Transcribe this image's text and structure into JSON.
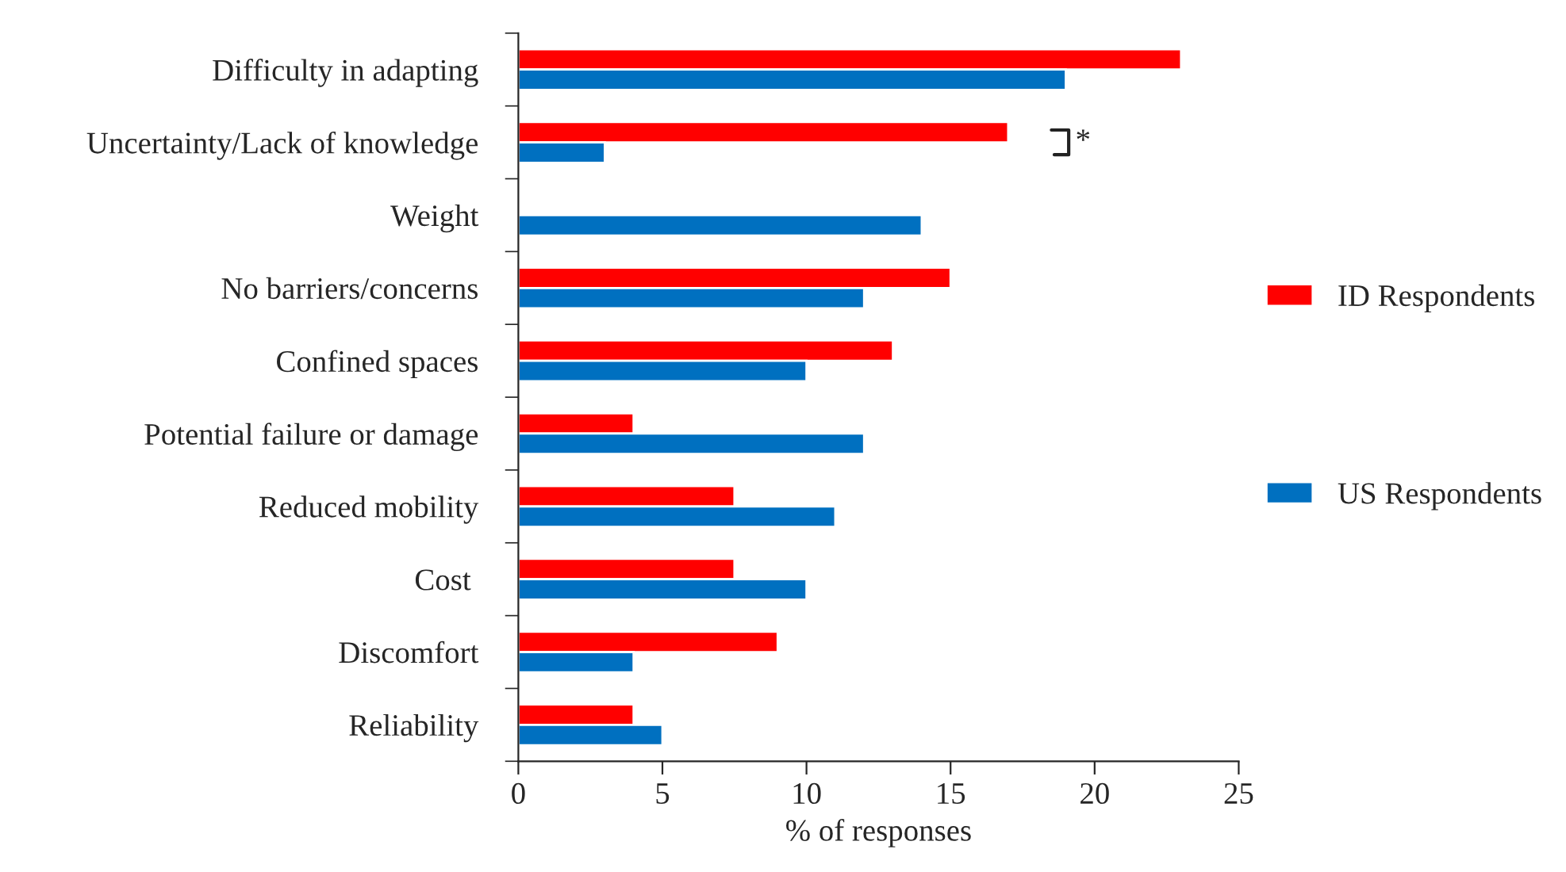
{
  "chart_data": {
    "type": "bar",
    "orientation": "horizontal",
    "xlabel": "% of responses",
    "categories": [
      "Difficulty in adapting",
      "Uncertainty/Lack of knowledge",
      "Weight",
      "No barriers/concerns",
      "Confined spaces",
      "Potential failure or damage",
      "Reduced mobility",
      "Cost ",
      "Discomfort",
      "Reliability"
    ],
    "series": [
      {
        "name": "ID Respondents",
        "color": "#ff0000",
        "values": [
          23,
          17,
          null,
          15,
          13,
          4,
          7.5,
          7.5,
          9,
          4
        ]
      },
      {
        "name": "US Respondents",
        "color": "#0070c0",
        "values": [
          19,
          3,
          14,
          12,
          10,
          12,
          11,
          10,
          4,
          5
        ]
      }
    ],
    "xlim": [
      0,
      25
    ],
    "xticks": [
      0,
      5,
      10,
      15,
      20,
      25
    ],
    "grid": false,
    "legend": "right",
    "annotations": [
      "*"
    ]
  }
}
